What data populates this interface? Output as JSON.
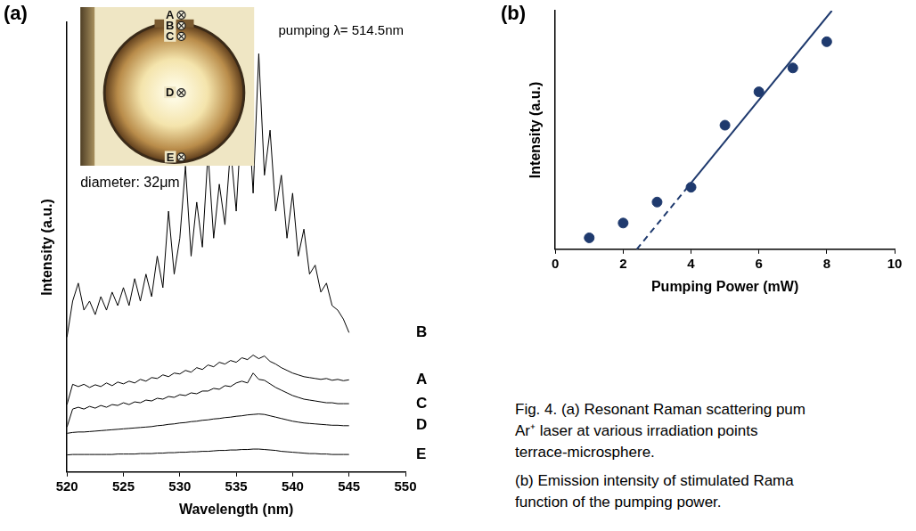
{
  "chart_data": [
    {
      "panel": "(a)",
      "type": "line",
      "annotations": [
        "pumping λ= 514.5nm"
      ],
      "inset": {
        "points": [
          "A",
          "B",
          "C",
          "D",
          "E"
        ],
        "caption": "diameter: 32μm"
      },
      "x_label": "Wavelength (nm)",
      "y_label": "Intensity (a.u.)",
      "x": [
        520,
        520.5,
        521,
        521.5,
        522,
        522.5,
        523,
        523.5,
        524,
        524.5,
        525,
        525.5,
        526,
        526.5,
        527,
        527.5,
        528,
        528.5,
        529,
        529.5,
        530,
        530.5,
        531,
        531.5,
        532,
        532.5,
        533,
        533.5,
        534,
        534.5,
        535,
        535.5,
        536,
        536.5,
        537,
        537.5,
        538,
        538.5,
        539,
        539.5,
        540,
        540.5,
        541,
        541.5,
        542,
        542.5,
        543,
        543.5,
        544,
        544.5,
        545
      ],
      "series": [
        {
          "name": "B",
          "color": "#000000",
          "values": [
            30,
            38,
            42,
            36,
            38,
            35,
            39,
            36,
            40,
            37,
            41,
            37,
            43,
            38,
            44,
            39,
            48,
            41,
            58,
            44,
            52,
            68,
            48,
            60,
            50,
            71,
            52,
            64,
            55,
            72,
            58,
            80,
            84,
            62,
            93,
            66,
            76,
            58,
            66,
            52,
            62,
            48,
            54,
            44,
            46,
            40,
            42,
            37,
            36,
            34,
            31
          ]
        },
        {
          "name": "A",
          "color": "#000000",
          "values": [
            15,
            19.5,
            19,
            19.5,
            18.8,
            19.4,
            19,
            19.8,
            19.2,
            20,
            19.6,
            20.2,
            19.8,
            20.6,
            20.2,
            21,
            20.8,
            21.6,
            21.2,
            22,
            21.8,
            22.6,
            22.2,
            23.2,
            22.8,
            23.8,
            23.4,
            24.4,
            24,
            24.8,
            24.4,
            25.4,
            25,
            26,
            25.2,
            25.8,
            24.6,
            24,
            23.2,
            22.6,
            22,
            21.6,
            21.2,
            21,
            20.8,
            20.6,
            20.8,
            20.4,
            20.6,
            20.3,
            20.5
          ]
        },
        {
          "name": "C",
          "color": "#000000",
          "values": [
            10,
            14,
            14.4,
            14,
            14.6,
            14.2,
            14.8,
            14.4,
            15,
            14.8,
            15.4,
            15,
            15.6,
            15.4,
            16,
            15.8,
            16.4,
            16.2,
            16.8,
            16.6,
            17.2,
            17,
            17.6,
            17.4,
            18,
            18,
            18.6,
            18.4,
            19.2,
            19,
            19.8,
            20.2,
            19.8,
            22,
            20.6,
            20.4,
            19.6,
            18.8,
            18.2,
            17.6,
            17,
            16.6,
            16.2,
            16,
            15.8,
            15.6,
            15.4,
            15.4,
            15.2,
            15.2,
            15.2
          ]
        },
        {
          "name": "D",
          "color": "#000000",
          "values": [
            8.6,
            8.8,
            8.9,
            8.9,
            9,
            9.1,
            9.2,
            9.3,
            9.4,
            9.5,
            9.6,
            9.7,
            9.8,
            9.9,
            10,
            10.1,
            10.3,
            10.4,
            10.6,
            10.7,
            10.9,
            11,
            11.2,
            11.3,
            11.5,
            11.6,
            11.8,
            11.9,
            12.1,
            12.2,
            12.4,
            12.5,
            12.7,
            12.8,
            12.9,
            12.8,
            12.5,
            12.2,
            11.9,
            11.6,
            11.3,
            11.1,
            10.9,
            10.8,
            10.7,
            10.6,
            10.5,
            10.4,
            10.4,
            10.3,
            10.3
          ]
        },
        {
          "name": "E",
          "color": "#000000",
          "values": [
            3.8,
            3.9,
            3.9,
            3.9,
            3.9,
            3.9,
            3.9,
            3.9,
            3.9,
            4.0,
            4.0,
            4.0,
            4.0,
            4.1,
            4.1,
            4.1,
            4.2,
            4.2,
            4.3,
            4.3,
            4.4,
            4.4,
            4.5,
            4.5,
            4.6,
            4.6,
            4.7,
            4.8,
            4.8,
            4.9,
            4.9,
            5.0,
            5.0,
            5.1,
            5.1,
            5.0,
            4.9,
            4.8,
            4.6,
            4.5,
            4.4,
            4.3,
            4.2,
            4.1,
            4.1,
            4.0,
            4.0,
            3.9,
            3.9,
            3.9,
            3.9
          ]
        }
      ],
      "xlim": [
        520,
        550
      ],
      "xticks": [
        520,
        525,
        530,
        535,
        540,
        545,
        550
      ],
      "ylim": [
        0,
        100
      ],
      "tick_labels": "x",
      "grid": false
    },
    {
      "panel": "(b)",
      "type": "scatter",
      "x_label": "Pumping Power (mW)",
      "y_label": "Intensity (a.u.)",
      "series": [
        {
          "type": "scatter",
          "marker": "circle",
          "color": "#1f3a6e",
          "x": [
            1,
            2,
            3,
            4,
            5,
            6,
            7,
            8
          ],
          "values": [
            4.8,
            11,
            19.8,
            26,
            52,
            66,
            76,
            87
          ]
        },
        {
          "type": "line",
          "line_style": "solid",
          "color": "#1f3a6e",
          "x": [
            4,
            8.15
          ],
          "values": [
            27.8,
            100
          ]
        },
        {
          "type": "line",
          "line_style": "dashed",
          "color": "#1f3a6e",
          "x": [
            2.4,
            4
          ],
          "values": [
            0,
            27.8
          ]
        }
      ],
      "xlim": [
        0,
        10
      ],
      "xticks": [
        0,
        2,
        4,
        6,
        8,
        10
      ],
      "ylim": [
        0,
        100
      ],
      "tick_labels": "x",
      "grid": false
    }
  ],
  "caption": [
    [
      "Fig. 4. (a) Resonant Raman scattering pum",
      "Ar⁺ laser at various irradiation points",
      "terrace-microsphere."
    ],
    [
      "(b) Emission intensity of stimulated Rama",
      "function of the pumping power."
    ]
  ]
}
